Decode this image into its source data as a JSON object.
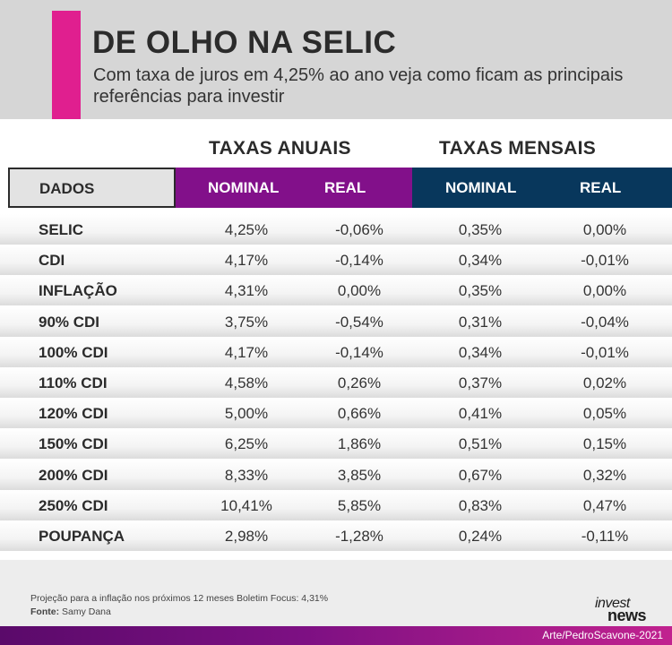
{
  "header": {
    "title": "DE OLHO NA SELIC",
    "subtitle": "Com taxa de juros em 4,25% ao ano veja como ficam as principais referências para investir",
    "accent_color": "#e01f8f",
    "background_color": "#d6d6d6"
  },
  "table": {
    "group_annual": "TAXAS ANUAIS",
    "group_monthly": "TAXAS MENSAIS",
    "col_dados": "DADOS",
    "annual_nominal": "NOMINAL",
    "annual_real": "REAL",
    "monthly_nominal": "NOMINAL",
    "monthly_real": "REAL",
    "annual_color": "#82108a",
    "monthly_color": "#08375c",
    "rows": [
      {
        "name": "SELIC",
        "annual_nominal": "4,25%",
        "annual_real": "-0,06%",
        "monthly_nominal": "0,35%",
        "monthly_real": "0,00%"
      },
      {
        "name": "CDI",
        "annual_nominal": "4,17%",
        "annual_real": "-0,14%",
        "monthly_nominal": "0,34%",
        "monthly_real": "-0,01%"
      },
      {
        "name": "INFLAÇÃO",
        "annual_nominal": "4,31%",
        "annual_real": "0,00%",
        "monthly_nominal": "0,35%",
        "monthly_real": "0,00%"
      },
      {
        "name": "90% CDI",
        "annual_nominal": "3,75%",
        "annual_real": "-0,54%",
        "monthly_nominal": "0,31%",
        "monthly_real": "-0,04%"
      },
      {
        "name": "100% CDI",
        "annual_nominal": "4,17%",
        "annual_real": "-0,14%",
        "monthly_nominal": "0,34%",
        "monthly_real": "-0,01%"
      },
      {
        "name": "110% CDI",
        "annual_nominal": "4,58%",
        "annual_real": "0,26%",
        "monthly_nominal": "0,37%",
        "monthly_real": "0,02%"
      },
      {
        "name": "120% CDI",
        "annual_nominal": "5,00%",
        "annual_real": "0,66%",
        "monthly_nominal": "0,41%",
        "monthly_real": "0,05%"
      },
      {
        "name": "150% CDI",
        "annual_nominal": "6,25%",
        "annual_real": "1,86%",
        "monthly_nominal": "0,51%",
        "monthly_real": "0,15%"
      },
      {
        "name": "200% CDI",
        "annual_nominal": "8,33%",
        "annual_real": "3,85%",
        "monthly_nominal": "0,67%",
        "monthly_real": "0,32%"
      },
      {
        "name": "250% CDI",
        "annual_nominal": "10,41%",
        "annual_real": "5,85%",
        "monthly_nominal": "0,83%",
        "monthly_real": "0,47%"
      },
      {
        "name": "POUPANÇA",
        "annual_nominal": "2,98%",
        "annual_real": "-1,28%",
        "monthly_nominal": "0,24%",
        "monthly_real": "-0,11%"
      }
    ]
  },
  "footer": {
    "note": "Projeção para a inflação nos próximos 12 meses Boletim Focus: 4,31%",
    "source_label": "Fonte:",
    "source_value": "Samy Dana",
    "logo_top": "invest",
    "logo_bottom": "news",
    "credit": "Arte/PedroScavone-2021"
  }
}
